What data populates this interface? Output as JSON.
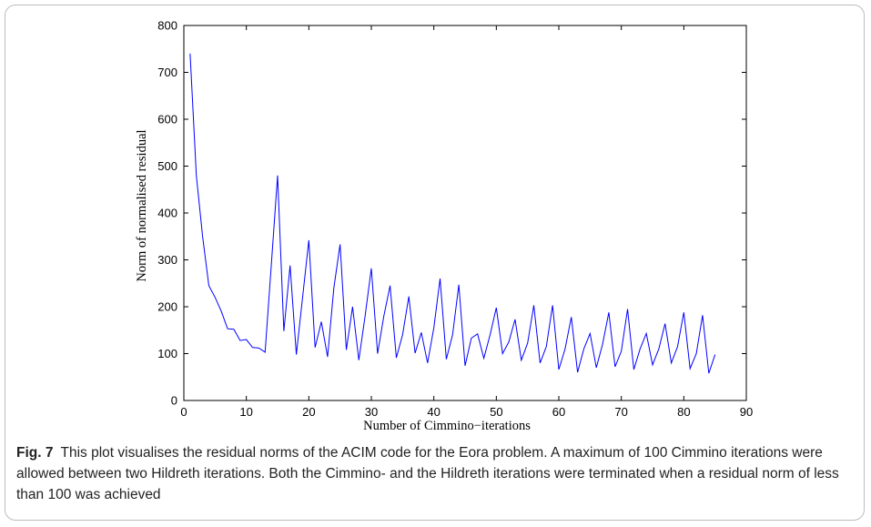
{
  "caption": {
    "label": "Fig. 7",
    "text": "This plot visualises the residual norms of the ACIM code for the Eora problem. A maximum of 100 Cimmino iterations were allowed between two Hildreth iterations. Both the Cimmino- and the Hildreth iterations were terminated when a residual norm of less than 100 was achieved"
  },
  "chart_data": {
    "type": "line",
    "title": "",
    "xlabel": "Number of Cimmino−iterations",
    "ylabel": "Norm of normalised residual",
    "xlim": [
      0,
      90
    ],
    "ylim": [
      0,
      800
    ],
    "xticks": [
      0,
      10,
      20,
      30,
      40,
      50,
      60,
      70,
      80,
      90
    ],
    "yticks": [
      0,
      100,
      200,
      300,
      400,
      500,
      600,
      700,
      800
    ],
    "grid": false,
    "series_color": "#0000ff",
    "series": [
      {
        "x": [
          1,
          2,
          3,
          4,
          5,
          6,
          7,
          8,
          9,
          10,
          11,
          12,
          13,
          14,
          15,
          16,
          17,
          18,
          19,
          20,
          21,
          22,
          23,
          24,
          25,
          26,
          27,
          28,
          29,
          30,
          31,
          32,
          33,
          34,
          35,
          36,
          37,
          38,
          39,
          40,
          41,
          42,
          43,
          44,
          45,
          46,
          47,
          48,
          49,
          50,
          51,
          52,
          53,
          54,
          55,
          56,
          57,
          58,
          59,
          60,
          61,
          62,
          63,
          64,
          65,
          66,
          67,
          68,
          69,
          70,
          71,
          72,
          73,
          74,
          75,
          76,
          77,
          78,
          79,
          80,
          81,
          82,
          83,
          84,
          85
        ],
        "values": [
          740,
          480,
          350,
          245,
          220,
          190,
          153,
          152,
          128,
          130,
          113,
          112,
          103,
          290,
          480,
          148,
          288,
          98,
          220,
          342,
          113,
          168,
          93,
          240,
          333,
          108,
          200,
          86,
          180,
          282,
          100,
          180,
          245,
          91,
          140,
          222,
          101,
          145,
          80,
          155,
          260,
          88,
          140,
          247,
          74,
          133,
          142,
          90,
          140,
          198,
          100,
          125,
          173,
          86,
          122,
          203,
          80,
          115,
          203,
          66,
          110,
          178,
          60,
          110,
          143,
          70,
          120,
          188,
          72,
          105,
          195,
          66,
          110,
          143,
          76,
          110,
          164,
          80,
          115,
          188,
          68,
          100,
          182,
          58,
          98
        ]
      }
    ]
  }
}
